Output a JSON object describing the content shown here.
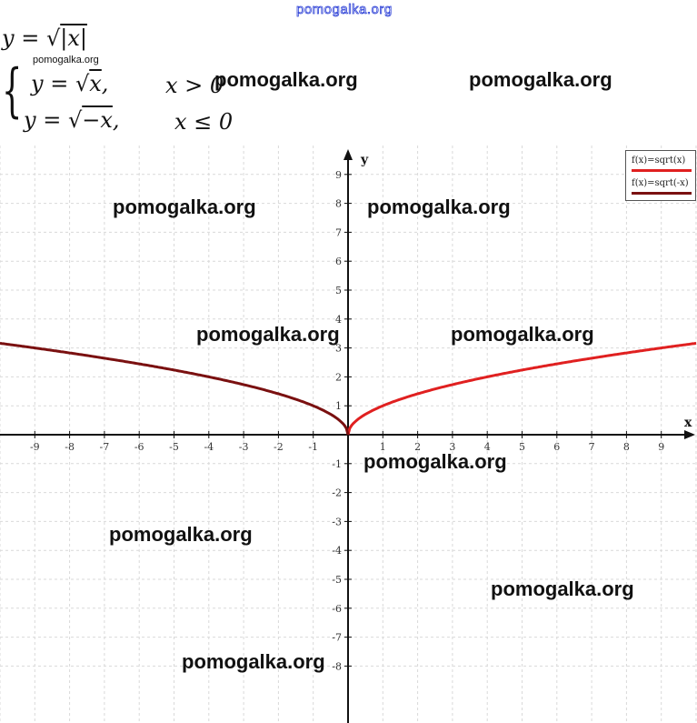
{
  "watermarks": {
    "top": "pomogalka.org",
    "small": "pomogalka.org",
    "large": "pomogalka.org"
  },
  "formulas": {
    "main_lhs": "y = ",
    "main_rhs": "|x|",
    "case1_lhs": "y = ",
    "case1_rhs": "x",
    "case1_tail": ",",
    "case1_cond": "x > 0",
    "case2_lhs": "y = ",
    "case2_rhs": "−x",
    "case2_tail": ",",
    "case2_cond": "x ≤ 0"
  },
  "chart_data": {
    "type": "line",
    "xlabel": "x",
    "ylabel": "y",
    "xlim": [
      -10,
      10
    ],
    "ylim": [
      -8.5,
      9.5
    ],
    "xticks": [
      -9,
      -8,
      -7,
      -6,
      -5,
      -4,
      -3,
      -2,
      -1,
      1,
      2,
      3,
      4,
      5,
      6,
      7,
      8,
      9
    ],
    "yticks": [
      -8,
      -7,
      -6,
      -5,
      -4,
      -3,
      -2,
      -1,
      1,
      2,
      3,
      4,
      5,
      6,
      7,
      8,
      9
    ],
    "grid": true,
    "legend_position": "top-right",
    "series": [
      {
        "name": "f(x)=sqrt(x)",
        "function": "sqrt(x)",
        "domain": [
          0,
          10
        ],
        "color": "#e02020"
      },
      {
        "name": "f(x)=sqrt(-x)",
        "function": "sqrt(-x)",
        "domain": [
          -10,
          0
        ],
        "color": "#7a1010"
      }
    ]
  }
}
